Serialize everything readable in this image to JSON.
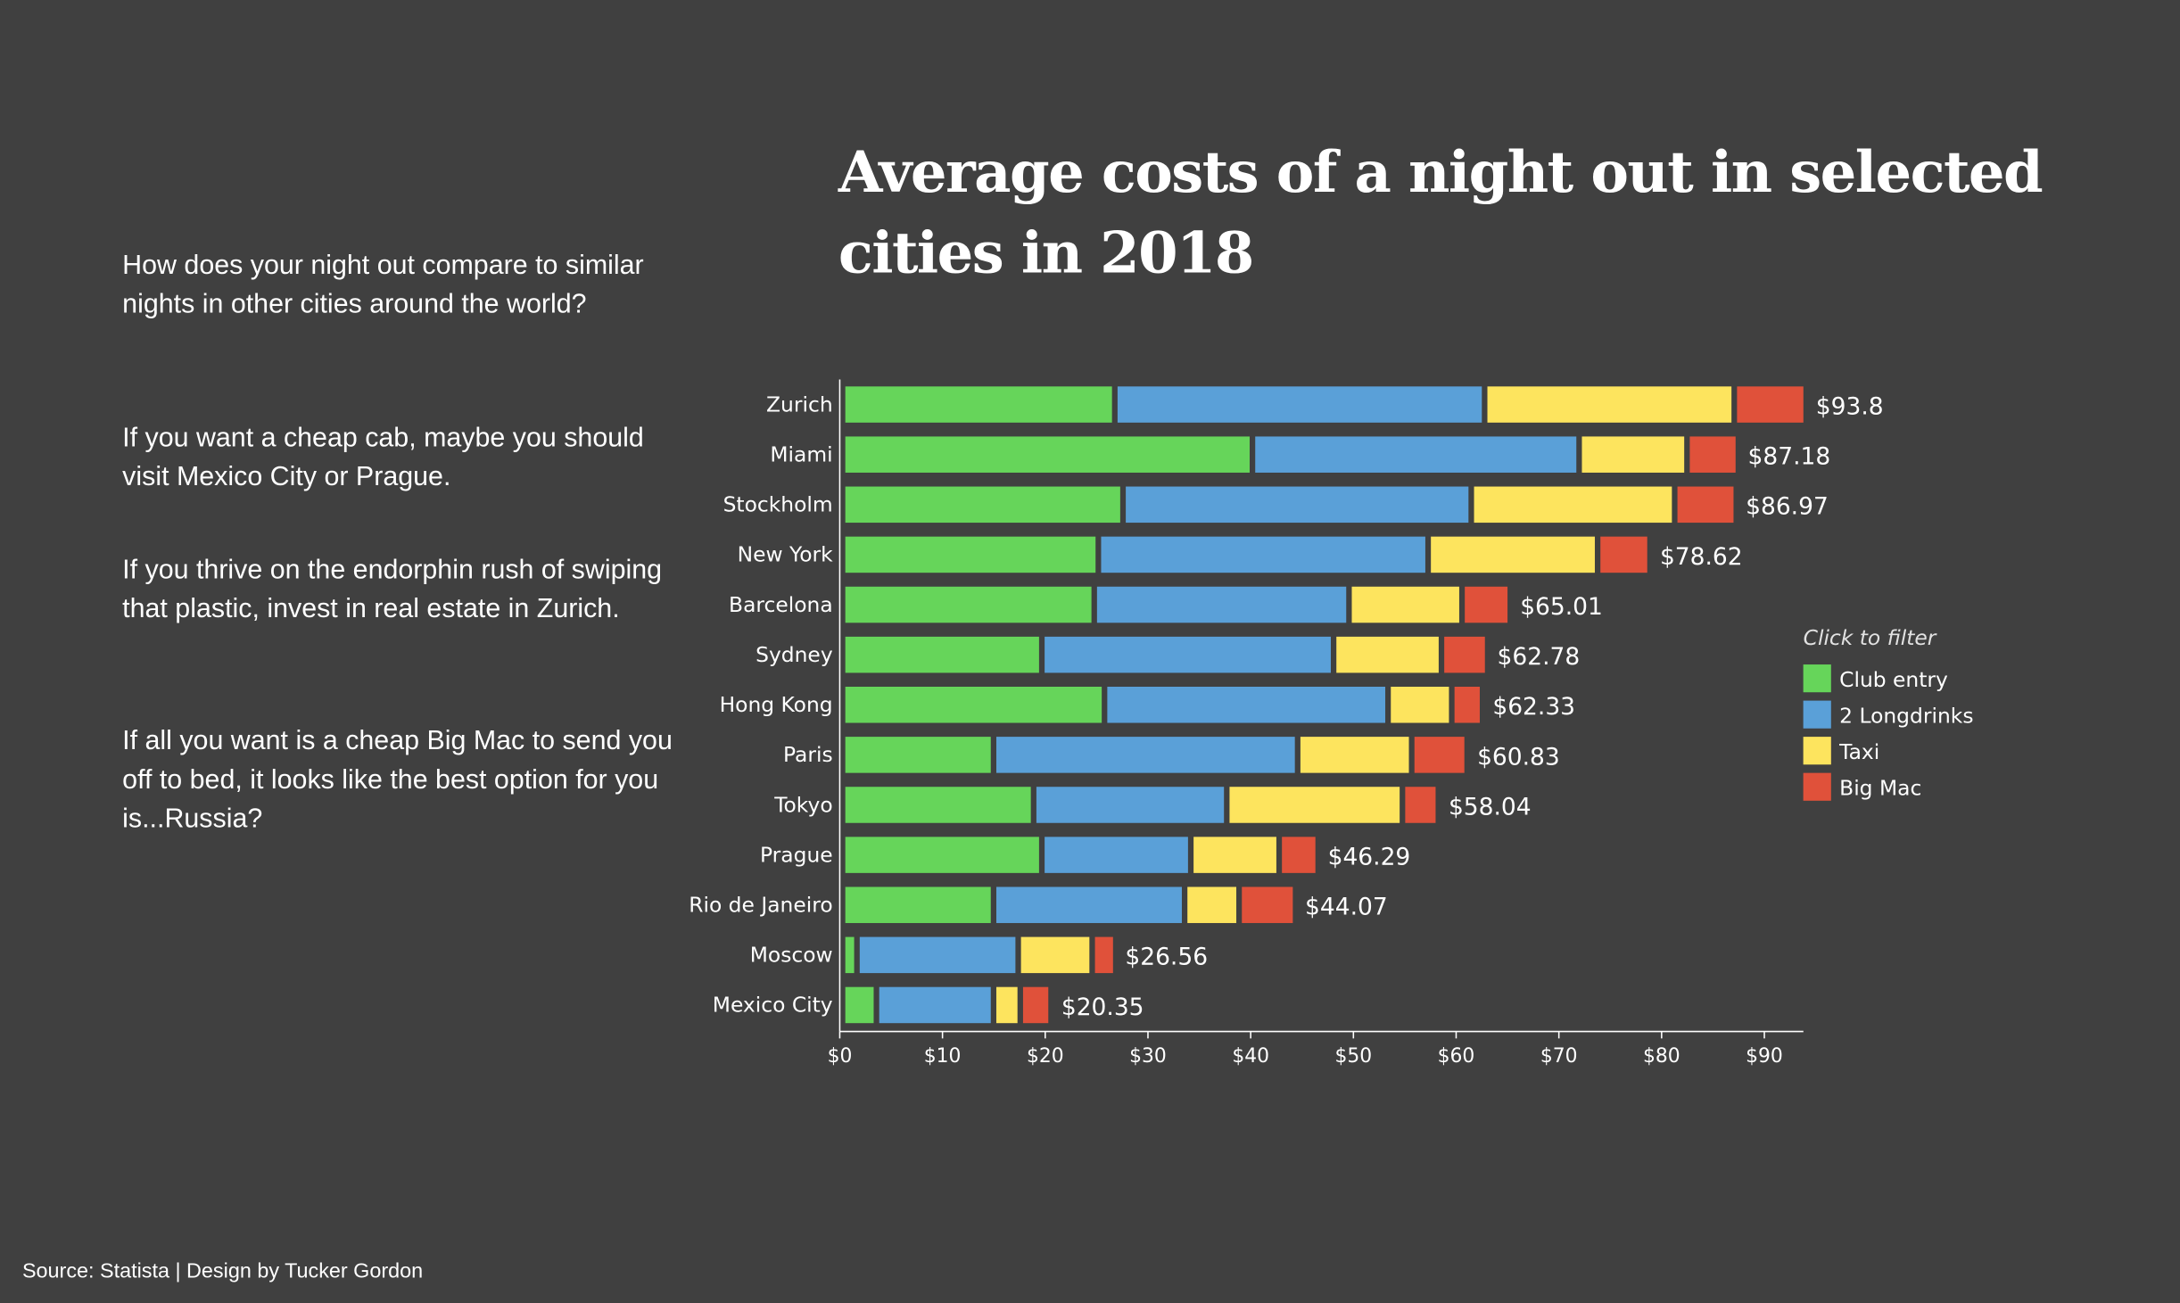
{
  "intro": [
    "How does your night out compare to similar nights in other cities around the world?",
    "If you want a cheap cab, maybe you should visit Mexico City or Prague.",
    "If you thrive on the endorphin rush of swiping that plastic, invest in real estate in Zurich.",
    "If all you want is a cheap Big Mac to send you off to bed, it looks like the best option for you is...Russia?"
  ],
  "source": "Source: Statista | Design by Tucker Gordon",
  "chart_data": {
    "type": "stacked-bar-horizontal",
    "title": "Average costs of a night out in selected cities in 2018",
    "categories": [
      "Zurich",
      "Miami",
      "Stockholm",
      "New York",
      "Barcelona",
      "Sydney",
      "Hong Kong",
      "Paris",
      "Tokyo",
      "Prague",
      "Rio de Janeiro",
      "Moscow",
      "Mexico City"
    ],
    "series": [
      {
        "name": "Club entry",
        "color": "#66d55a",
        "values": [
          26.5,
          39.9,
          27.3,
          24.9,
          24.5,
          19.4,
          25.5,
          14.7,
          18.6,
          19.4,
          14.7,
          1.4,
          3.3
        ]
      },
      {
        "name": "2 Longdrinks",
        "color": "#5aa0d8",
        "values": [
          36.0,
          31.8,
          33.9,
          32.1,
          24.8,
          28.4,
          27.6,
          29.6,
          18.8,
          14.5,
          18.6,
          15.7,
          11.4
        ]
      },
      {
        "name": "Taxi",
        "color": "#fde45e",
        "values": [
          24.3,
          10.5,
          19.8,
          16.5,
          11.0,
          10.5,
          6.2,
          11.1,
          17.1,
          8.6,
          5.3,
          7.2,
          2.6
        ]
      },
      {
        "name": "Big Mac",
        "color": "#e0513a",
        "values": [
          7.0,
          5.0,
          6.0,
          5.1,
          4.7,
          4.5,
          3.0,
          5.4,
          3.5,
          3.8,
          5.5,
          2.3,
          3.0
        ]
      }
    ],
    "totals": [
      93.8,
      87.18,
      86.97,
      78.62,
      65.01,
      62.78,
      62.33,
      60.83,
      58.04,
      46.29,
      44.07,
      26.56,
      20.35
    ],
    "total_labels": [
      "$93.8",
      "$87.18",
      "$86.97",
      "$78.62",
      "$65.01",
      "$62.78",
      "$62.33",
      "$60.83",
      "$58.04",
      "$46.29",
      "$44.07",
      "$26.56",
      "$20.35"
    ],
    "xlim": [
      0,
      93.8
    ],
    "xticks": [
      {
        "value": 0,
        "label": "$0"
      },
      {
        "value": 10,
        "label": "$10"
      },
      {
        "value": 20,
        "label": "$20"
      },
      {
        "value": 30,
        "label": "$30"
      },
      {
        "value": 40,
        "label": "$40"
      },
      {
        "value": 50,
        "label": "$50"
      },
      {
        "value": 60,
        "label": "$60"
      },
      {
        "value": 70,
        "label": "$70"
      },
      {
        "value": 80,
        "label": "$80"
      },
      {
        "value": 90,
        "label": "$90"
      }
    ],
    "legend_title": "Click to filter",
    "legend_position": "right"
  }
}
